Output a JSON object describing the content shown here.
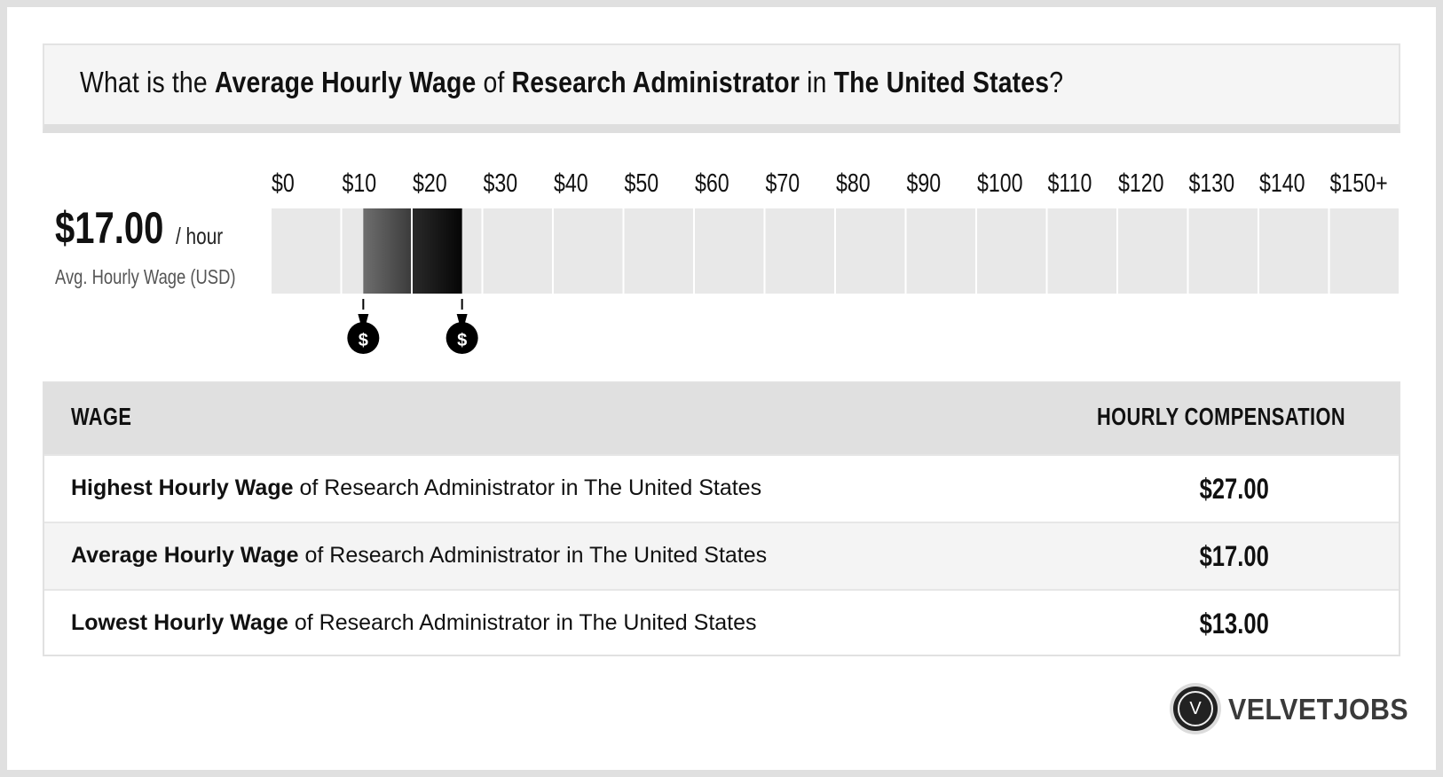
{
  "header": {
    "q_prefix": "What is the",
    "q_metric": "Average Hourly Wage",
    "q_of": "of",
    "q_job": "Research Administrator",
    "q_in": "in",
    "q_location": "The United States",
    "q_suffix": "?"
  },
  "summary": {
    "value": "$17.00",
    "unit": "/ hour",
    "caption": "Avg. Hourly Wage (USD)"
  },
  "chart_data": {
    "type": "bar",
    "orientation": "horizontal-range",
    "title": "",
    "x_tick_labels": [
      "$0",
      "$10",
      "$20",
      "$30",
      "$40",
      "$50",
      "$60",
      "$70",
      "$80",
      "$90",
      "$100",
      "$110",
      "$120",
      "$130",
      "$140",
      "$150+"
    ],
    "xlim": [
      0,
      150
    ],
    "range": {
      "low": 13,
      "average": 17,
      "high": 27
    },
    "markers": [
      {
        "name": "low",
        "value": 13,
        "icon": "money-bag-icon",
        "label": "$"
      },
      {
        "name": "high",
        "value": 27,
        "icon": "money-bag-icon",
        "label": "$"
      }
    ],
    "colors": {
      "track": "#e8e8e8",
      "low_band": "#5a5a5a",
      "high_band": "#111111"
    }
  },
  "table": {
    "col_wage": "WAGE",
    "col_comp": "HOURLY COMPENSATION",
    "rows": [
      {
        "bold": "Highest Hourly Wage",
        "rest": "of Research Administrator in The United States",
        "value": "$27.00"
      },
      {
        "bold": "Average Hourly Wage",
        "rest": "of Research Administrator in The United States",
        "value": "$17.00"
      },
      {
        "bold": "Lowest Hourly Wage",
        "rest": "of Research Administrator in The United States",
        "value": "$13.00"
      }
    ]
  },
  "brand": {
    "letter": "V",
    "name": "VELVETJOBS"
  }
}
